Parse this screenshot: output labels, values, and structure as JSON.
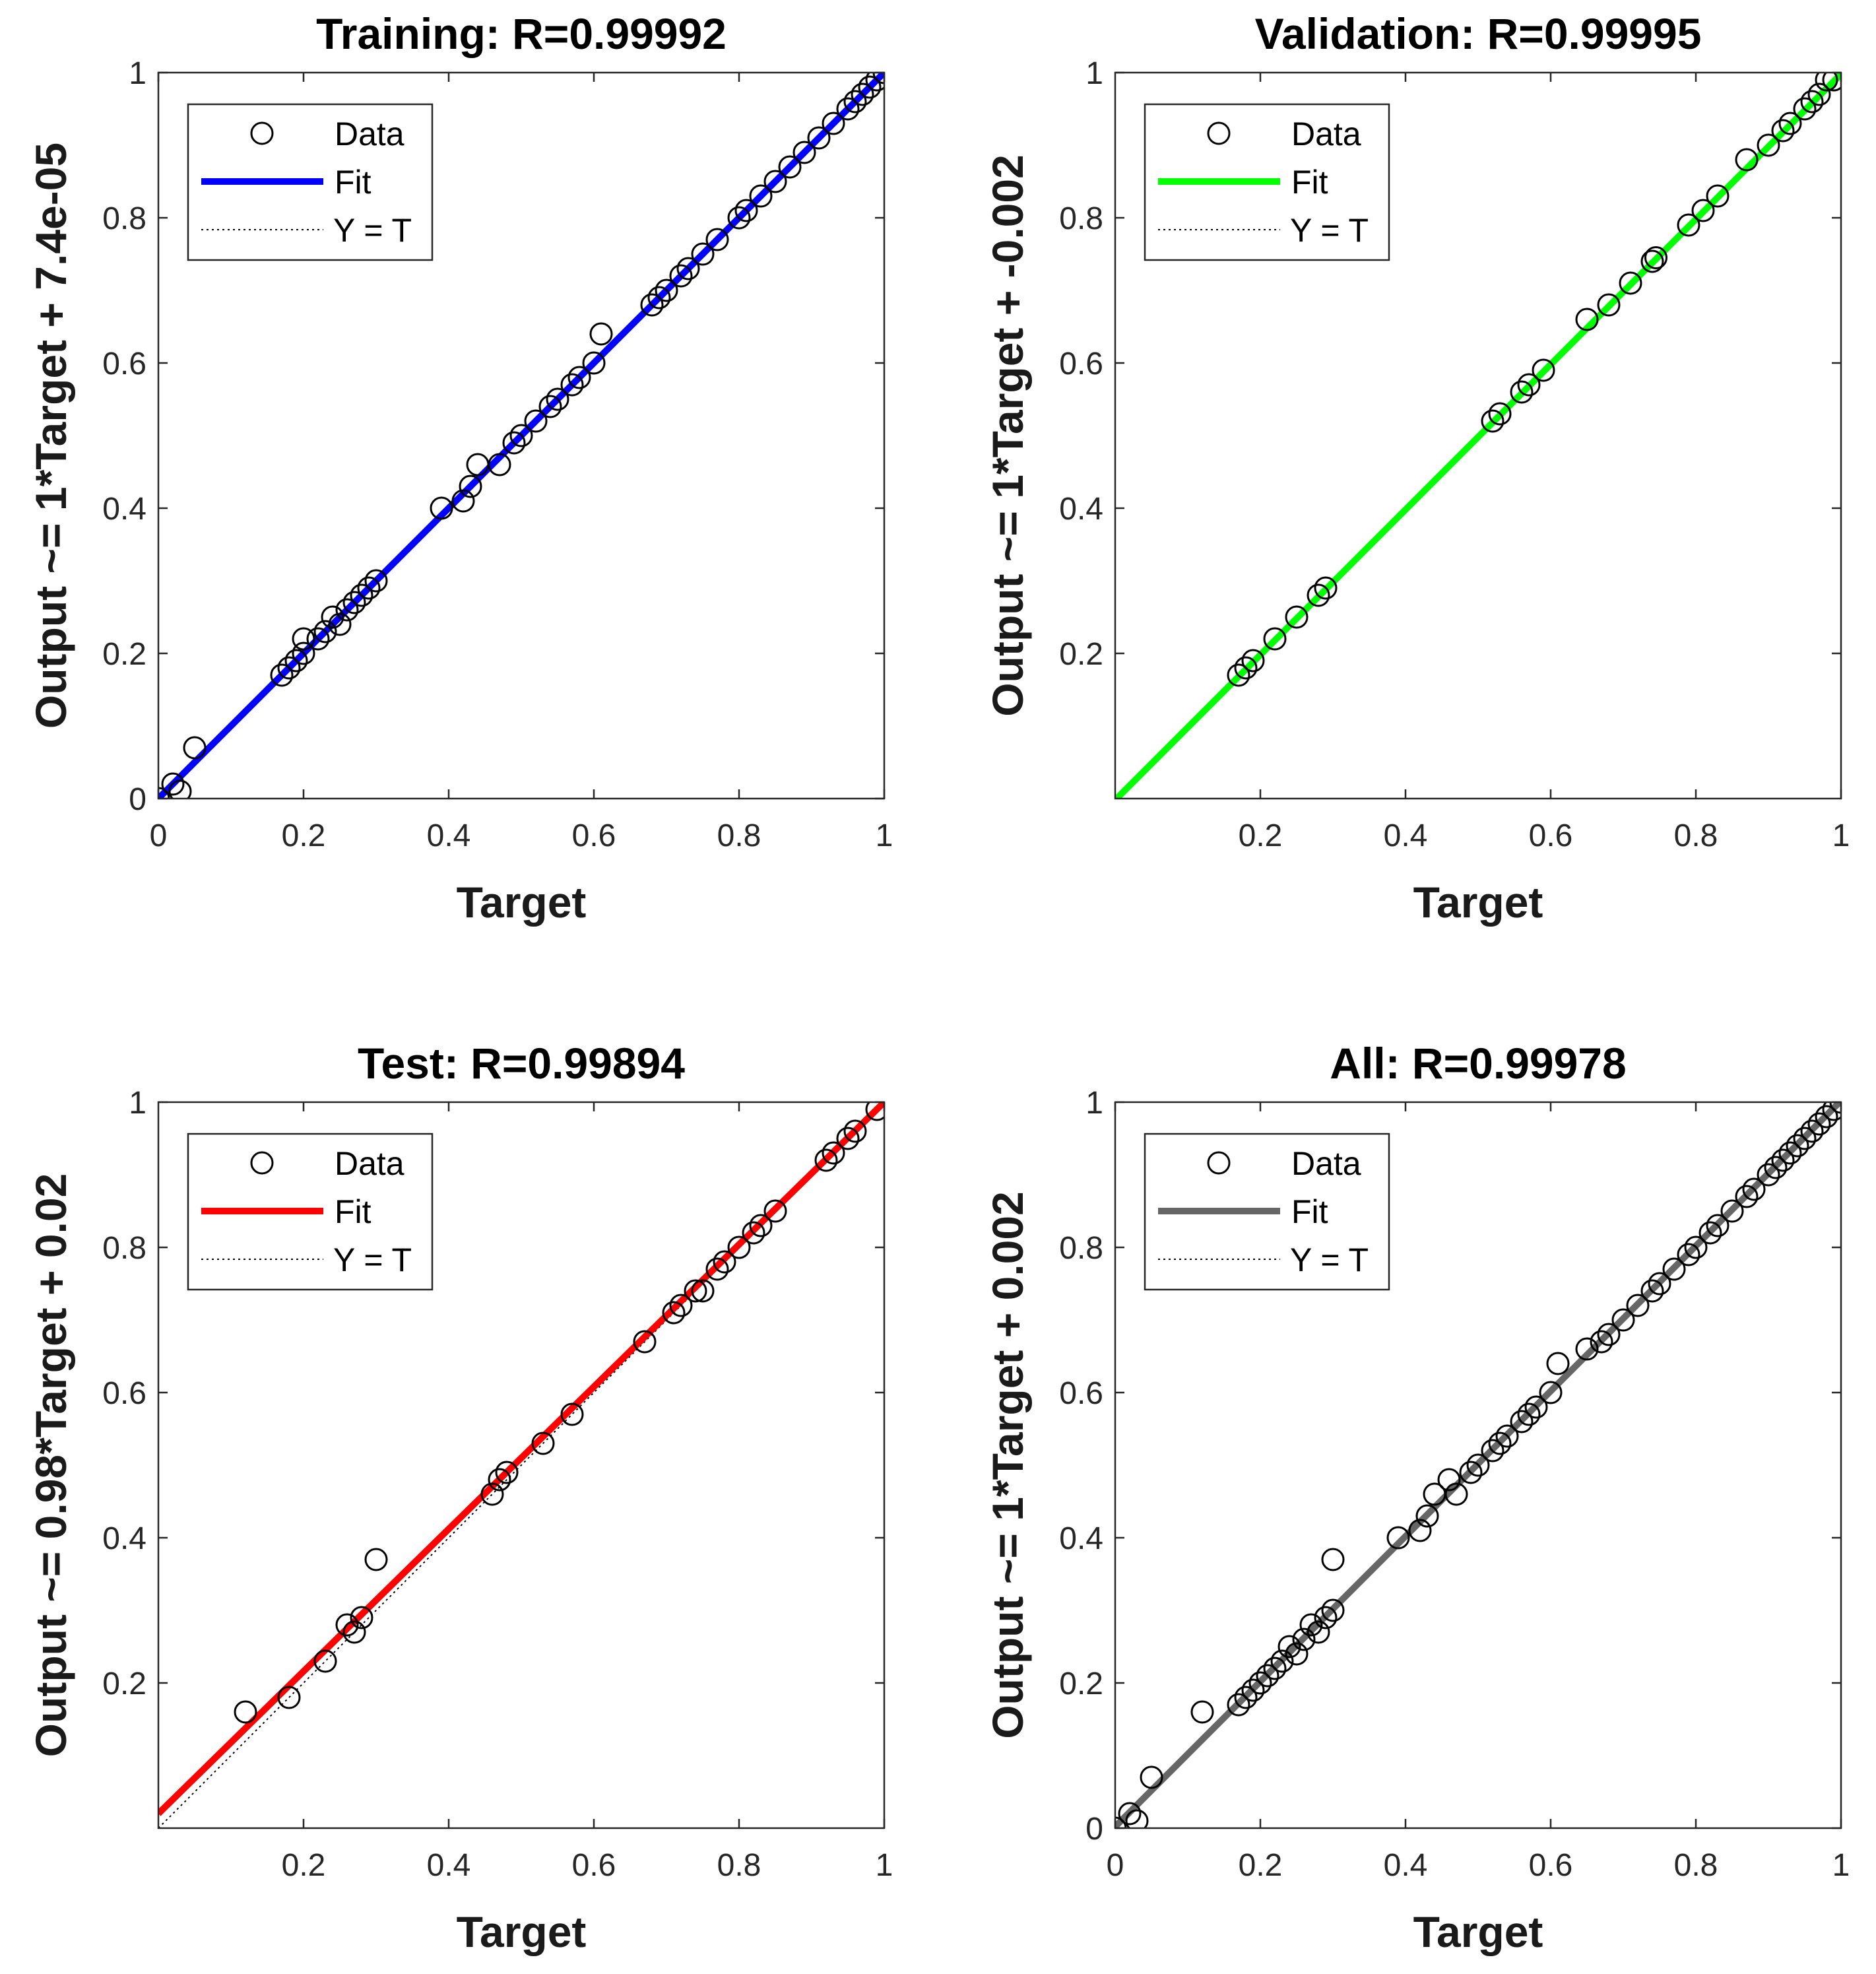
{
  "chart_data": [
    {
      "type": "scatter",
      "title": "Training: R=0.99992",
      "xlabel": "Target",
      "ylabel": "Output ~= 1*Target + 7.4e-05",
      "xlim": [
        0,
        1
      ],
      "ylim": [
        0,
        1
      ],
      "xticks": [
        "0",
        "0.2",
        "0.4",
        "0.6",
        "0.8",
        "1"
      ],
      "yticks": [
        "0",
        "0.2",
        "0.4",
        "0.6",
        "0.8",
        "1"
      ],
      "grid": false,
      "legend": {
        "placement": "top-left",
        "entries": [
          "Data",
          "Fit",
          "Y = T"
        ]
      },
      "fit": {
        "slope": 1,
        "intercept": 7.4e-05,
        "color": "#0000ff"
      },
      "data_color": "#000000",
      "points": [
        [
          0,
          0
        ],
        [
          0.02,
          0.02
        ],
        [
          0.03,
          0.01
        ],
        [
          0.05,
          0.07
        ],
        [
          0.17,
          0.17
        ],
        [
          0.18,
          0.18
        ],
        [
          0.19,
          0.19
        ],
        [
          0.2,
          0.2
        ],
        [
          0.2,
          0.22
        ],
        [
          0.22,
          0.22
        ],
        [
          0.23,
          0.23
        ],
        [
          0.24,
          0.25
        ],
        [
          0.25,
          0.24
        ],
        [
          0.26,
          0.26
        ],
        [
          0.27,
          0.27
        ],
        [
          0.28,
          0.28
        ],
        [
          0.29,
          0.29
        ],
        [
          0.3,
          0.3
        ],
        [
          0.39,
          0.4
        ],
        [
          0.42,
          0.41
        ],
        [
          0.43,
          0.43
        ],
        [
          0.44,
          0.46
        ],
        [
          0.47,
          0.46
        ],
        [
          0.49,
          0.49
        ],
        [
          0.5,
          0.5
        ],
        [
          0.52,
          0.52
        ],
        [
          0.54,
          0.54
        ],
        [
          0.55,
          0.55
        ],
        [
          0.57,
          0.57
        ],
        [
          0.58,
          0.58
        ],
        [
          0.6,
          0.6
        ],
        [
          0.61,
          0.64
        ],
        [
          0.68,
          0.68
        ],
        [
          0.69,
          0.69
        ],
        [
          0.7,
          0.7
        ],
        [
          0.72,
          0.72
        ],
        [
          0.73,
          0.73
        ],
        [
          0.75,
          0.75
        ],
        [
          0.77,
          0.77
        ],
        [
          0.8,
          0.8
        ],
        [
          0.81,
          0.81
        ],
        [
          0.83,
          0.83
        ],
        [
          0.85,
          0.85
        ],
        [
          0.87,
          0.87
        ],
        [
          0.89,
          0.89
        ],
        [
          0.91,
          0.91
        ],
        [
          0.93,
          0.93
        ],
        [
          0.95,
          0.95
        ],
        [
          0.96,
          0.96
        ],
        [
          0.97,
          0.97
        ],
        [
          0.98,
          0.98
        ],
        [
          0.99,
          0.99
        ],
        [
          1,
          1
        ]
      ]
    },
    {
      "type": "scatter",
      "title": "Validation: R=0.99995",
      "xlabel": "Target",
      "ylabel": "Output ~= 1*Target + -0.002",
      "xlim": [
        0,
        1
      ],
      "ylim": [
        0,
        1
      ],
      "xticks": [
        "0.2",
        "0.4",
        "0.6",
        "0.8",
        "1"
      ],
      "yticks": [
        "0.2",
        "0.4",
        "0.6",
        "0.8",
        "1"
      ],
      "grid": false,
      "legend": {
        "placement": "top-left",
        "entries": [
          "Data",
          "Fit",
          "Y = T"
        ]
      },
      "fit": {
        "slope": 1,
        "intercept": -0.002,
        "color": "#00ff00"
      },
      "data_color": "#000000",
      "points": [
        [
          0.17,
          0.17
        ],
        [
          0.18,
          0.18
        ],
        [
          0.19,
          0.19
        ],
        [
          0.22,
          0.22
        ],
        [
          0.25,
          0.25
        ],
        [
          0.28,
          0.28
        ],
        [
          0.29,
          0.29
        ],
        [
          0.52,
          0.52
        ],
        [
          0.53,
          0.53
        ],
        [
          0.56,
          0.56
        ],
        [
          0.57,
          0.57
        ],
        [
          0.59,
          0.59
        ],
        [
          0.65,
          0.66
        ],
        [
          0.68,
          0.68
        ],
        [
          0.71,
          0.71
        ],
        [
          0.74,
          0.74
        ],
        [
          0.745,
          0.745
        ],
        [
          0.79,
          0.79
        ],
        [
          0.81,
          0.81
        ],
        [
          0.83,
          0.83
        ],
        [
          0.87,
          0.88
        ],
        [
          0.9,
          0.9
        ],
        [
          0.92,
          0.92
        ],
        [
          0.93,
          0.93
        ],
        [
          0.95,
          0.95
        ],
        [
          0.96,
          0.96
        ],
        [
          0.97,
          0.97
        ],
        [
          0.98,
          0.99
        ],
        [
          0.99,
          0.99
        ]
      ]
    },
    {
      "type": "scatter",
      "title": "Test: R=0.99894",
      "xlabel": "Target",
      "ylabel": "Output ~= 0.98*Target + 0.02",
      "xlim": [
        0,
        1
      ],
      "ylim": [
        0,
        1
      ],
      "xticks": [
        "0.2",
        "0.4",
        "0.6",
        "0.8",
        "1"
      ],
      "yticks": [
        "0.2",
        "0.4",
        "0.6",
        "0.8",
        "1"
      ],
      "grid": false,
      "legend": {
        "placement": "top-left",
        "entries": [
          "Data",
          "Fit",
          "Y = T"
        ]
      },
      "fit": {
        "slope": 0.98,
        "intercept": 0.02,
        "color": "#ff0000"
      },
      "data_color": "#000000",
      "points": [
        [
          0.12,
          0.16
        ],
        [
          0.18,
          0.18
        ],
        [
          0.23,
          0.23
        ],
        [
          0.26,
          0.28
        ],
        [
          0.27,
          0.27
        ],
        [
          0.28,
          0.29
        ],
        [
          0.3,
          0.37
        ],
        [
          0.46,
          0.46
        ],
        [
          0.47,
          0.48
        ],
        [
          0.48,
          0.49
        ],
        [
          0.53,
          0.53
        ],
        [
          0.57,
          0.57
        ],
        [
          0.67,
          0.67
        ],
        [
          0.71,
          0.71
        ],
        [
          0.72,
          0.72
        ],
        [
          0.74,
          0.74
        ],
        [
          0.75,
          0.74
        ],
        [
          0.77,
          0.77
        ],
        [
          0.78,
          0.78
        ],
        [
          0.8,
          0.8
        ],
        [
          0.82,
          0.82
        ],
        [
          0.83,
          0.83
        ],
        [
          0.85,
          0.85
        ],
        [
          0.92,
          0.92
        ],
        [
          0.93,
          0.93
        ],
        [
          0.95,
          0.95
        ],
        [
          0.96,
          0.96
        ],
        [
          0.99,
          0.99
        ]
      ]
    },
    {
      "type": "scatter",
      "title": "All: R=0.99978",
      "xlabel": "Target",
      "ylabel": "Output ~= 1*Target + 0.002",
      "xlim": [
        0,
        1
      ],
      "ylim": [
        0,
        1
      ],
      "xticks": [
        "0",
        "0.2",
        "0.4",
        "0.6",
        "0.8",
        "1"
      ],
      "yticks": [
        "0",
        "0.2",
        "0.4",
        "0.6",
        "0.8",
        "1"
      ],
      "grid": false,
      "legend": {
        "placement": "top-left",
        "entries": [
          "Data",
          "Fit",
          "Y = T"
        ]
      },
      "fit": {
        "slope": 1,
        "intercept": 0.002,
        "color": "#666666"
      },
      "data_color": "#000000",
      "points": [
        [
          0,
          0
        ],
        [
          0.02,
          0.02
        ],
        [
          0.03,
          0.01
        ],
        [
          0.05,
          0.07
        ],
        [
          0.12,
          0.16
        ],
        [
          0.17,
          0.17
        ],
        [
          0.18,
          0.18
        ],
        [
          0.19,
          0.19
        ],
        [
          0.2,
          0.2
        ],
        [
          0.21,
          0.21
        ],
        [
          0.22,
          0.22
        ],
        [
          0.23,
          0.23
        ],
        [
          0.24,
          0.25
        ],
        [
          0.25,
          0.24
        ],
        [
          0.26,
          0.26
        ],
        [
          0.27,
          0.28
        ],
        [
          0.28,
          0.27
        ],
        [
          0.29,
          0.29
        ],
        [
          0.3,
          0.3
        ],
        [
          0.3,
          0.37
        ],
        [
          0.39,
          0.4
        ],
        [
          0.42,
          0.41
        ],
        [
          0.43,
          0.43
        ],
        [
          0.44,
          0.46
        ],
        [
          0.46,
          0.48
        ],
        [
          0.47,
          0.46
        ],
        [
          0.49,
          0.49
        ],
        [
          0.5,
          0.5
        ],
        [
          0.52,
          0.52
        ],
        [
          0.53,
          0.53
        ],
        [
          0.54,
          0.54
        ],
        [
          0.56,
          0.56
        ],
        [
          0.57,
          0.57
        ],
        [
          0.58,
          0.58
        ],
        [
          0.6,
          0.6
        ],
        [
          0.61,
          0.64
        ],
        [
          0.65,
          0.66
        ],
        [
          0.67,
          0.67
        ],
        [
          0.68,
          0.68
        ],
        [
          0.7,
          0.7
        ],
        [
          0.72,
          0.72
        ],
        [
          0.74,
          0.74
        ],
        [
          0.75,
          0.75
        ],
        [
          0.77,
          0.77
        ],
        [
          0.79,
          0.79
        ],
        [
          0.8,
          0.8
        ],
        [
          0.82,
          0.82
        ],
        [
          0.83,
          0.83
        ],
        [
          0.85,
          0.85
        ],
        [
          0.87,
          0.87
        ],
        [
          0.88,
          0.88
        ],
        [
          0.9,
          0.9
        ],
        [
          0.91,
          0.91
        ],
        [
          0.92,
          0.92
        ],
        [
          0.93,
          0.93
        ],
        [
          0.94,
          0.94
        ],
        [
          0.95,
          0.95
        ],
        [
          0.96,
          0.96
        ],
        [
          0.97,
          0.97
        ],
        [
          0.98,
          0.98
        ],
        [
          0.99,
          0.99
        ],
        [
          1,
          1
        ]
      ]
    }
  ]
}
